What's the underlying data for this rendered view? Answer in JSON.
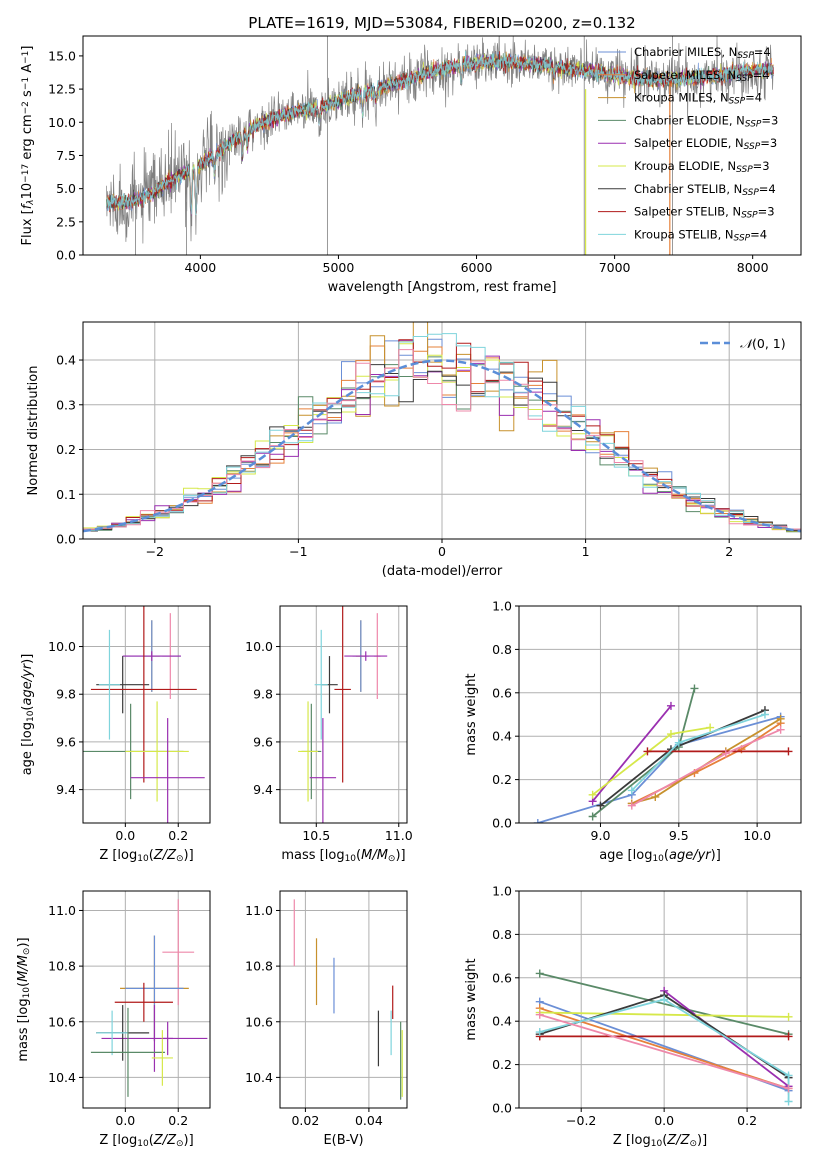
{
  "colors": {
    "Chabrier MILES": "#6b8fd6",
    "Salpeter MILES": "#e6803a",
    "Kroupa MILES": "#c7912d",
    "Chabrier ELODIE": "#5a8a68",
    "Salpeter ELODIE": "#9a2fb0",
    "Kroupa ELODIE": "#d6e84a",
    "Chabrier STELIB": "#3a3a3a",
    "Salpeter STELIB": "#b11a1a",
    "Kroupa STELIB": "#7fd4dc",
    "pink": "#ee88aa",
    "gaussian": "#5b8ed8",
    "grid": "#b0b0b0",
    "data": "#808080"
  },
  "chart_data": [
    {
      "id": "spectrum",
      "type": "line",
      "title": "PLATE=1619, MJD=53084, FIBERID=0200, z=0.132",
      "xlabel": "wavelength [Angstrom, rest frame]",
      "ylabel": "Flux [fλ10⁻¹⁷ erg cm⁻² s⁻¹ A⁻¹]",
      "xlim": [
        3150,
        8350
      ],
      "ylim": [
        0,
        16.5
      ],
      "xticks": [
        4000,
        5000,
        6000,
        7000,
        8000
      ],
      "yticks": [
        0.0,
        2.5,
        5.0,
        7.5,
        10.0,
        12.5,
        15.0
      ],
      "grid": false,
      "legend_position": "right",
      "legend": [
        "Chabrier MILES, N_SSP=4",
        "Salpeter MILES, N_SSP=4",
        "Kroupa MILES, N_SSP=4",
        "Chabrier ELODIE, N_SSP=3",
        "Salpeter ELODIE, N_SSP=3",
        "Kroupa ELODIE, N_SSP=3",
        "Chabrier STELIB, N_SSP=4",
        "Salpeter STELIB, N_SSP=3",
        "Kroupa STELIB, N_SSP=4"
      ],
      "continuum": [
        [
          3320,
          3.9
        ],
        [
          3500,
          4.0
        ],
        [
          3650,
          4.6
        ],
        [
          3750,
          5.4
        ],
        [
          3850,
          6.0
        ],
        [
          3950,
          6.5
        ],
        [
          4100,
          7.5
        ],
        [
          4200,
          8.3
        ],
        [
          4350,
          9.4
        ],
        [
          4500,
          10.2
        ],
        [
          4700,
          10.8
        ],
        [
          4900,
          11.2
        ],
        [
          5100,
          12.0
        ],
        [
          5300,
          12.6
        ],
        [
          5500,
          13.2
        ],
        [
          5700,
          13.9
        ],
        [
          5900,
          14.4
        ],
        [
          6100,
          14.5
        ],
        [
          6300,
          14.5
        ],
        [
          6500,
          14.3
        ],
        [
          6700,
          14.0
        ],
        [
          6900,
          13.7
        ],
        [
          7100,
          13.4
        ],
        [
          7300,
          13.2
        ],
        [
          7500,
          13.3
        ],
        [
          7700,
          13.5
        ],
        [
          8000,
          13.9
        ],
        [
          8150,
          14.0
        ]
      ]
    },
    {
      "id": "residuals",
      "type": "histogram",
      "xlabel": "(data-model)/error",
      "ylabel": "Normed distribution",
      "xlim": [
        -2.5,
        2.5
      ],
      "ylim": [
        0,
        0.485
      ],
      "xticks": [
        -2,
        -1,
        0,
        1,
        2
      ],
      "xticklabels": [
        "−2",
        "−1",
        "0",
        "1",
        "2"
      ],
      "yticks": [
        0.0,
        0.1,
        0.2,
        0.3,
        0.4
      ],
      "grid": true,
      "legend": [
        "𝒩(0, 1)"
      ],
      "legend_position": "top-right",
      "bin_width": 0.1
    },
    {
      "id": "age_vs_Z",
      "type": "errorbar",
      "xlabel": "Z [log10(Z/Z⊙)]",
      "ylabel": "age  [log10(age/yr)]",
      "xlim": [
        -0.16,
        0.32
      ],
      "ylim": [
        9.26,
        10.17
      ],
      "xticks": [
        0.0,
        0.2
      ],
      "yticks": [
        9.4,
        9.6,
        9.8,
        10.0
      ],
      "grid": true
    },
    {
      "id": "age_vs_mass",
      "type": "errorbar",
      "xlabel": "mass [log10(M/M⊙)]",
      "ylabel": "",
      "xlim": [
        10.28,
        11.05
      ],
      "ylim": [
        9.26,
        10.17
      ],
      "xticks": [
        10.5,
        11.0
      ],
      "yticks": [
        9.4,
        9.6,
        9.8,
        10.0
      ],
      "grid": true
    },
    {
      "id": "weight_vs_age",
      "type": "line",
      "xlabel": "age  [log10(age/yr)]",
      "ylabel": "mass weight",
      "xlim": [
        8.48,
        10.28
      ],
      "ylim": [
        0,
        1.0
      ],
      "xticks": [
        9.0,
        9.5,
        10.0
      ],
      "yticks": [
        0.0,
        0.2,
        0.4,
        0.6,
        0.8,
        1.0
      ],
      "grid": true,
      "series": [
        {
          "name": "Chabrier MILES",
          "points": [
            [
              8.6,
              0.0
            ],
            [
              9.2,
              0.13
            ],
            [
              9.5,
              0.36
            ],
            [
              10.15,
              0.49
            ]
          ]
        },
        {
          "name": "Salpeter MILES",
          "points": [
            [
              9.2,
              0.09
            ],
            [
              9.6,
              0.23
            ],
            [
              9.9,
              0.34
            ],
            [
              10.15,
              0.46
            ]
          ]
        },
        {
          "name": "Kroupa MILES",
          "points": [
            [
              9.2,
              0.09
            ],
            [
              9.35,
              0.12
            ],
            [
              9.8,
              0.33
            ],
            [
              10.15,
              0.48
            ]
          ]
        },
        {
          "name": "Chabrier ELODIE",
          "points": [
            [
              8.95,
              0.03
            ],
            [
              9.5,
              0.35
            ],
            [
              9.6,
              0.62
            ]
          ]
        },
        {
          "name": "Salpeter ELODIE",
          "points": [
            [
              8.95,
              0.1
            ],
            [
              9.45,
              0.54
            ]
          ]
        },
        {
          "name": "Kroupa ELODIE",
          "points": [
            [
              8.95,
              0.13
            ],
            [
              9.45,
              0.41
            ],
            [
              9.7,
              0.44
            ]
          ]
        },
        {
          "name": "Chabrier STELIB",
          "points": [
            [
              9.0,
              0.08
            ],
            [
              9.45,
              0.34
            ],
            [
              10.05,
              0.52
            ]
          ]
        },
        {
          "name": "Salpeter STELIB",
          "points": [
            [
              9.3,
              0.33
            ],
            [
              10.2,
              0.33
            ]
          ]
        },
        {
          "name": "Kroupa STELIB",
          "points": [
            [
              9.2,
              0.15
            ],
            [
              9.5,
              0.37
            ],
            [
              10.05,
              0.5
            ]
          ]
        },
        {
          "name": "pink",
          "points": [
            [
              9.2,
              0.08
            ],
            [
              9.8,
              0.32
            ],
            [
              10.15,
              0.43
            ]
          ]
        }
      ]
    },
    {
      "id": "mass_vs_Z",
      "type": "errorbar",
      "xlabel": "Z [log10(Z/Z⊙)]",
      "ylabel": "mass [log10(M/M⊙)]",
      "xlim": [
        -0.16,
        0.32
      ],
      "ylim": [
        10.29,
        11.07
      ],
      "xticks": [
        0.0,
        0.2
      ],
      "yticks": [
        10.4,
        10.6,
        10.8,
        11.0
      ],
      "grid": true
    },
    {
      "id": "mass_vs_EBV",
      "type": "errorbar",
      "xlabel": "E(B-V)",
      "ylabel": "",
      "xlim": [
        0.012,
        0.052
      ],
      "ylim": [
        10.29,
        11.07
      ],
      "xticks": [
        0.02,
        0.04
      ],
      "yticks": [
        10.4,
        10.6,
        10.8,
        11.0
      ],
      "grid": true
    },
    {
      "id": "weight_vs_Z",
      "type": "line",
      "xlabel": "Z [log10(Z/Z⊙)]",
      "ylabel": "mass weight",
      "xlim": [
        -0.35,
        0.33
      ],
      "ylim": [
        0,
        1.0
      ],
      "xticks": [
        -0.2,
        0.0,
        0.2
      ],
      "xticklabels": [
        "−0.2",
        "0.0",
        "0.2"
      ],
      "yticks": [
        0.0,
        0.2,
        0.4,
        0.6,
        0.8,
        1.0
      ],
      "grid": true,
      "series": [
        {
          "name": "Chabrier MILES",
          "points": [
            [
              -0.3,
              0.49
            ],
            [
              0.3,
              0.08
            ]
          ]
        },
        {
          "name": "Salpeter MILES",
          "points": [
            [
              -0.3,
              0.46
            ],
            [
              0.3,
              0.09
            ]
          ]
        },
        {
          "name": "Chabrier ELODIE",
          "points": [
            [
              -0.3,
              0.62
            ],
            [
              0.3,
              0.34
            ]
          ]
        },
        {
          "name": "Salpeter ELODIE",
          "points": [
            [
              0.0,
              0.54
            ],
            [
              0.3,
              0.1
            ]
          ]
        },
        {
          "name": "Kroupa ELODIE",
          "points": [
            [
              -0.3,
              0.44
            ],
            [
              0.3,
              0.42
            ]
          ]
        },
        {
          "name": "Chabrier STELIB",
          "points": [
            [
              -0.3,
              0.34
            ],
            [
              0.0,
              0.52
            ],
            [
              0.3,
              0.14
            ]
          ]
        },
        {
          "name": "Salpeter STELIB",
          "points": [
            [
              -0.3,
              0.33
            ],
            [
              0.3,
              0.33
            ]
          ]
        },
        {
          "name": "Kroupa STELIB",
          "points": [
            [
              -0.3,
              0.35
            ],
            [
              0.0,
              0.5
            ],
            [
              0.3,
              0.15
            ],
            [
              0.3,
              0.03
            ]
          ]
        },
        {
          "name": "pink",
          "points": [
            [
              -0.3,
              0.43
            ],
            [
              0.3,
              0.09
            ]
          ]
        }
      ]
    }
  ],
  "errorbars": {
    "age_vs_Z": [
      {
        "c": "pink",
        "x": 0.17,
        "dx": 0.03,
        "y": 9.96,
        "dy": 0.18
      },
      {
        "c": "Kroupa MILES",
        "x": 0.1,
        "dx": 0.03,
        "y": 9.96,
        "dy": 0.15
      },
      {
        "c": "Chabrier MILES",
        "x": 0.1,
        "dx": 0.11,
        "y": 9.96,
        "dy": 0.15
      },
      {
        "c": "Salpeter ELODIE",
        "x": 0.1,
        "dx": 0.11,
        "y": 9.96,
        "dy": 0.02
      },
      {
        "c": "Chabrier STELIB",
        "x": -0.01,
        "dx": 0.1,
        "y": 9.84,
        "dy": 0.12
      },
      {
        "c": "Salpeter STELIB",
        "x": 0.07,
        "dx": 0.2,
        "y": 9.82,
        "dy": 0.39
      },
      {
        "c": "Kroupa STELIB",
        "x": -0.06,
        "dx": 0.04,
        "y": 9.84,
        "dy": 0.23
      },
      {
        "c": "Chabrier ELODIE",
        "x": 0.02,
        "dx": 0.2,
        "y": 9.56,
        "dy": 0.2
      },
      {
        "c": "Kroupa ELODIE",
        "x": 0.12,
        "dx": 0.12,
        "y": 9.56,
        "dy": 0.21
      },
      {
        "c": "Salpeter ELODIE",
        "x": 0.16,
        "dx": 0.14,
        "y": 9.45,
        "dy": 0.25
      }
    ],
    "age_vs_mass": [
      {
        "c": "pink",
        "x": 10.87,
        "dx": 0.02,
        "y": 9.96,
        "dy": 0.18
      },
      {
        "c": "Kroupa MILES",
        "x": 10.77,
        "dx": 0.03,
        "y": 9.96,
        "dy": 0.15
      },
      {
        "c": "Chabrier MILES",
        "x": 10.77,
        "dx": 0.05,
        "y": 9.96,
        "dy": 0.15
      },
      {
        "c": "Salpeter ELODIE",
        "x": 10.8,
        "dx": 0.13,
        "y": 9.96,
        "dy": 0.02
      },
      {
        "c": "Chabrier STELIB",
        "x": 10.58,
        "dx": 0.05,
        "y": 9.84,
        "dy": 0.12
      },
      {
        "c": "Salpeter STELIB",
        "x": 10.66,
        "dx": 0.05,
        "y": 9.82,
        "dy": 0.39
      },
      {
        "c": "Kroupa STELIB",
        "x": 10.53,
        "dx": 0.04,
        "y": 9.84,
        "dy": 0.23
      },
      {
        "c": "Chabrier ELODIE",
        "x": 10.47,
        "dx": 0.06,
        "y": 9.56,
        "dy": 0.2
      },
      {
        "c": "Kroupa ELODIE",
        "x": 10.45,
        "dx": 0.06,
        "y": 9.56,
        "dy": 0.21
      },
      {
        "c": "Salpeter ELODIE",
        "x": 10.54,
        "dx": 0.08,
        "y": 9.45,
        "dy": 0.25
      }
    ],
    "mass_vs_Z": [
      {
        "c": "pink",
        "x": 0.2,
        "dx": 0.06,
        "y": 10.85,
        "dy": 0.19
      },
      {
        "c": "Kroupa MILES",
        "x": 0.11,
        "dx": 0.13,
        "y": 10.72,
        "dy": 0.19
      },
      {
        "c": "Chabrier MILES",
        "x": 0.11,
        "dx": 0.11,
        "y": 10.72,
        "dy": 0.19
      },
      {
        "c": "Salpeter ELODIE",
        "x": 0.11,
        "dx": 0.2,
        "y": 10.54,
        "dy": 0.12
      },
      {
        "c": "Chabrier STELIB",
        "x": -0.01,
        "dx": 0.1,
        "y": 10.56,
        "dy": 0.1
      },
      {
        "c": "Salpeter STELIB",
        "x": 0.07,
        "dx": 0.11,
        "y": 10.67,
        "dy": 0.07
      },
      {
        "c": "Kroupa STELIB",
        "x": -0.05,
        "dx": 0.06,
        "y": 10.56,
        "dy": 0.08
      },
      {
        "c": "Chabrier ELODIE",
        "x": 0.01,
        "dx": 0.14,
        "y": 10.49,
        "dy": 0.16
      },
      {
        "c": "Kroupa ELODIE",
        "x": 0.14,
        "dx": 0.04,
        "y": 10.47,
        "dy": 0.1
      },
      {
        "c": "Salpeter ELODIE",
        "x": 0.16,
        "dx": 0.02,
        "y": 10.54,
        "dy": 0.06
      }
    ],
    "mass_vs_EBV": [
      {
        "c": "pink",
        "x": 0.0165,
        "dx": 0.0,
        "y": 10.92,
        "dy": 0.12
      },
      {
        "c": "Kroupa MILES",
        "x": 0.0235,
        "dx": 0.0,
        "y": 10.78,
        "dy": 0.12
      },
      {
        "c": "Chabrier MILES",
        "x": 0.029,
        "dx": 0.0,
        "y": 10.73,
        "dy": 0.1
      },
      {
        "c": "Chabrier STELIB",
        "x": 0.043,
        "dx": 0.0,
        "y": 10.54,
        "dy": 0.1
      },
      {
        "c": "Salpeter STELIB",
        "x": 0.0475,
        "dx": 0.0,
        "y": 10.67,
        "dy": 0.06
      },
      {
        "c": "Kroupa STELIB",
        "x": 0.047,
        "dx": 0.0,
        "y": 10.56,
        "dy": 0.08
      },
      {
        "c": "Chabrier ELODIE",
        "x": 0.05,
        "dx": 0.0,
        "y": 10.46,
        "dy": 0.14
      },
      {
        "c": "Kroupa ELODIE",
        "x": 0.0505,
        "dx": 0.0,
        "y": 10.45,
        "dy": 0.12
      }
    ]
  }
}
